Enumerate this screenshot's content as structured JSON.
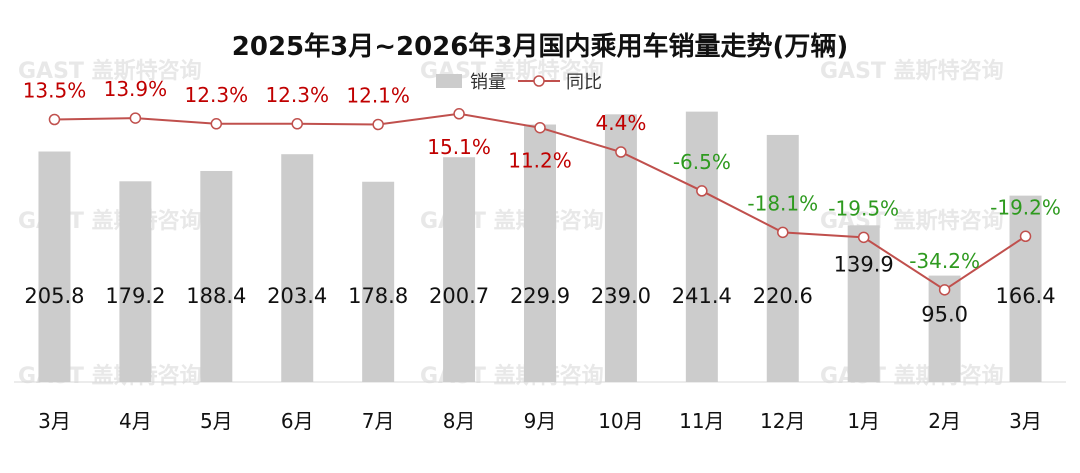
{
  "chart_data": {
    "type": "bar+line",
    "title": "2025年3月~2026年3月国内乘用车销量走势(万辆)",
    "categories": [
      "3月",
      "4月",
      "5月",
      "6月",
      "7月",
      "8月",
      "9月",
      "10月",
      "11月",
      "12月",
      "1月",
      "2月",
      "3月"
    ],
    "series": [
      {
        "name": "销量",
        "type": "bar",
        "values": [
          205.8,
          179.2,
          188.4,
          203.4,
          178.8,
          200.7,
          229.9,
          239.0,
          241.4,
          220.6,
          139.9,
          95.0,
          166.4
        ],
        "labels": [
          "205.8",
          "179.2",
          "188.4",
          "203.4",
          "178.8",
          "200.7",
          "229.9",
          "239.0",
          "241.4",
          "220.6",
          "139.9",
          "95.0",
          "166.4"
        ]
      },
      {
        "name": "同比",
        "type": "line",
        "values": [
          13.5,
          13.9,
          12.3,
          12.3,
          12.1,
          15.1,
          11.2,
          4.4,
          -6.5,
          -18.1,
          -19.5,
          -34.2,
          -19.2
        ],
        "labels": [
          "13.5%",
          "13.9%",
          "12.3%",
          "12.3%",
          "12.1%",
          "15.1%",
          "11.2%",
          "4.4%",
          "-6.5%",
          "-18.1%",
          "-19.5%",
          "-34.2%",
          "-19.2%"
        ]
      }
    ],
    "bar_ylim": [
      0,
      300
    ],
    "line_ylim": [
      -60,
      24
    ],
    "legend_position": "top-center",
    "colors": {
      "bar": "#cccccc",
      "line": "#c0504d",
      "positive_label": "#c00000",
      "negative_label": "#2e9a1f"
    }
  },
  "watermark": "GAST 盖斯特咨询"
}
